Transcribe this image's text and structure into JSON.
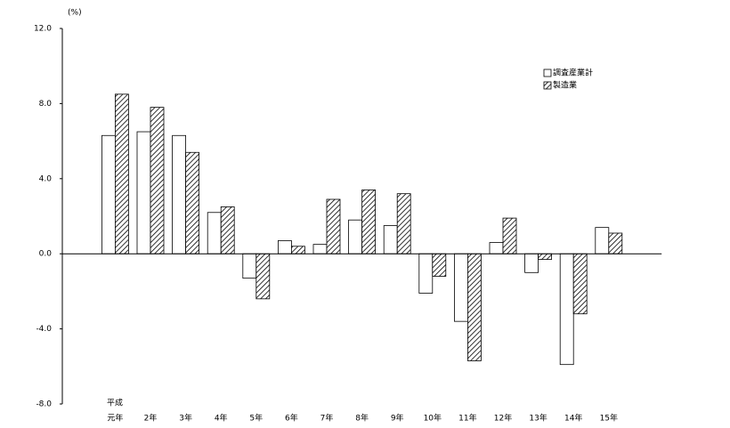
{
  "chart_data": {
    "type": "bar",
    "y_unit": "(%)",
    "era_label": "平成",
    "categories": [
      "元年",
      "2年",
      "3年",
      "4年",
      "5年",
      "6年",
      "7年",
      "8年",
      "9年",
      "10年",
      "11年",
      "12年",
      "13年",
      "14年",
      "15年"
    ],
    "series": [
      {
        "name": "調査産業計",
        "color": "#ffffff",
        "values": [
          6.3,
          6.5,
          6.3,
          2.2,
          -1.3,
          0.7,
          0.5,
          1.8,
          1.5,
          -2.1,
          -3.6,
          0.6,
          -1.0,
          -5.9,
          1.4
        ]
      },
      {
        "name": "製造業",
        "color": "hatch",
        "values": [
          8.5,
          7.8,
          5.4,
          2.5,
          -2.4,
          0.4,
          2.9,
          3.4,
          3.2,
          -1.2,
          -5.7,
          1.9,
          -0.3,
          -3.2,
          1.1
        ]
      }
    ],
    "ylim": [
      -8,
      12
    ],
    "yticks": [
      {
        "value": -8,
        "label": "-8.0"
      },
      {
        "value": -4,
        "label": "-4.0"
      },
      {
        "value": 0,
        "label": "0.0"
      },
      {
        "value": 4,
        "label": "4.0"
      },
      {
        "value": 8,
        "label": "8.0"
      },
      {
        "value": 12,
        "label": "12.0"
      }
    ]
  }
}
